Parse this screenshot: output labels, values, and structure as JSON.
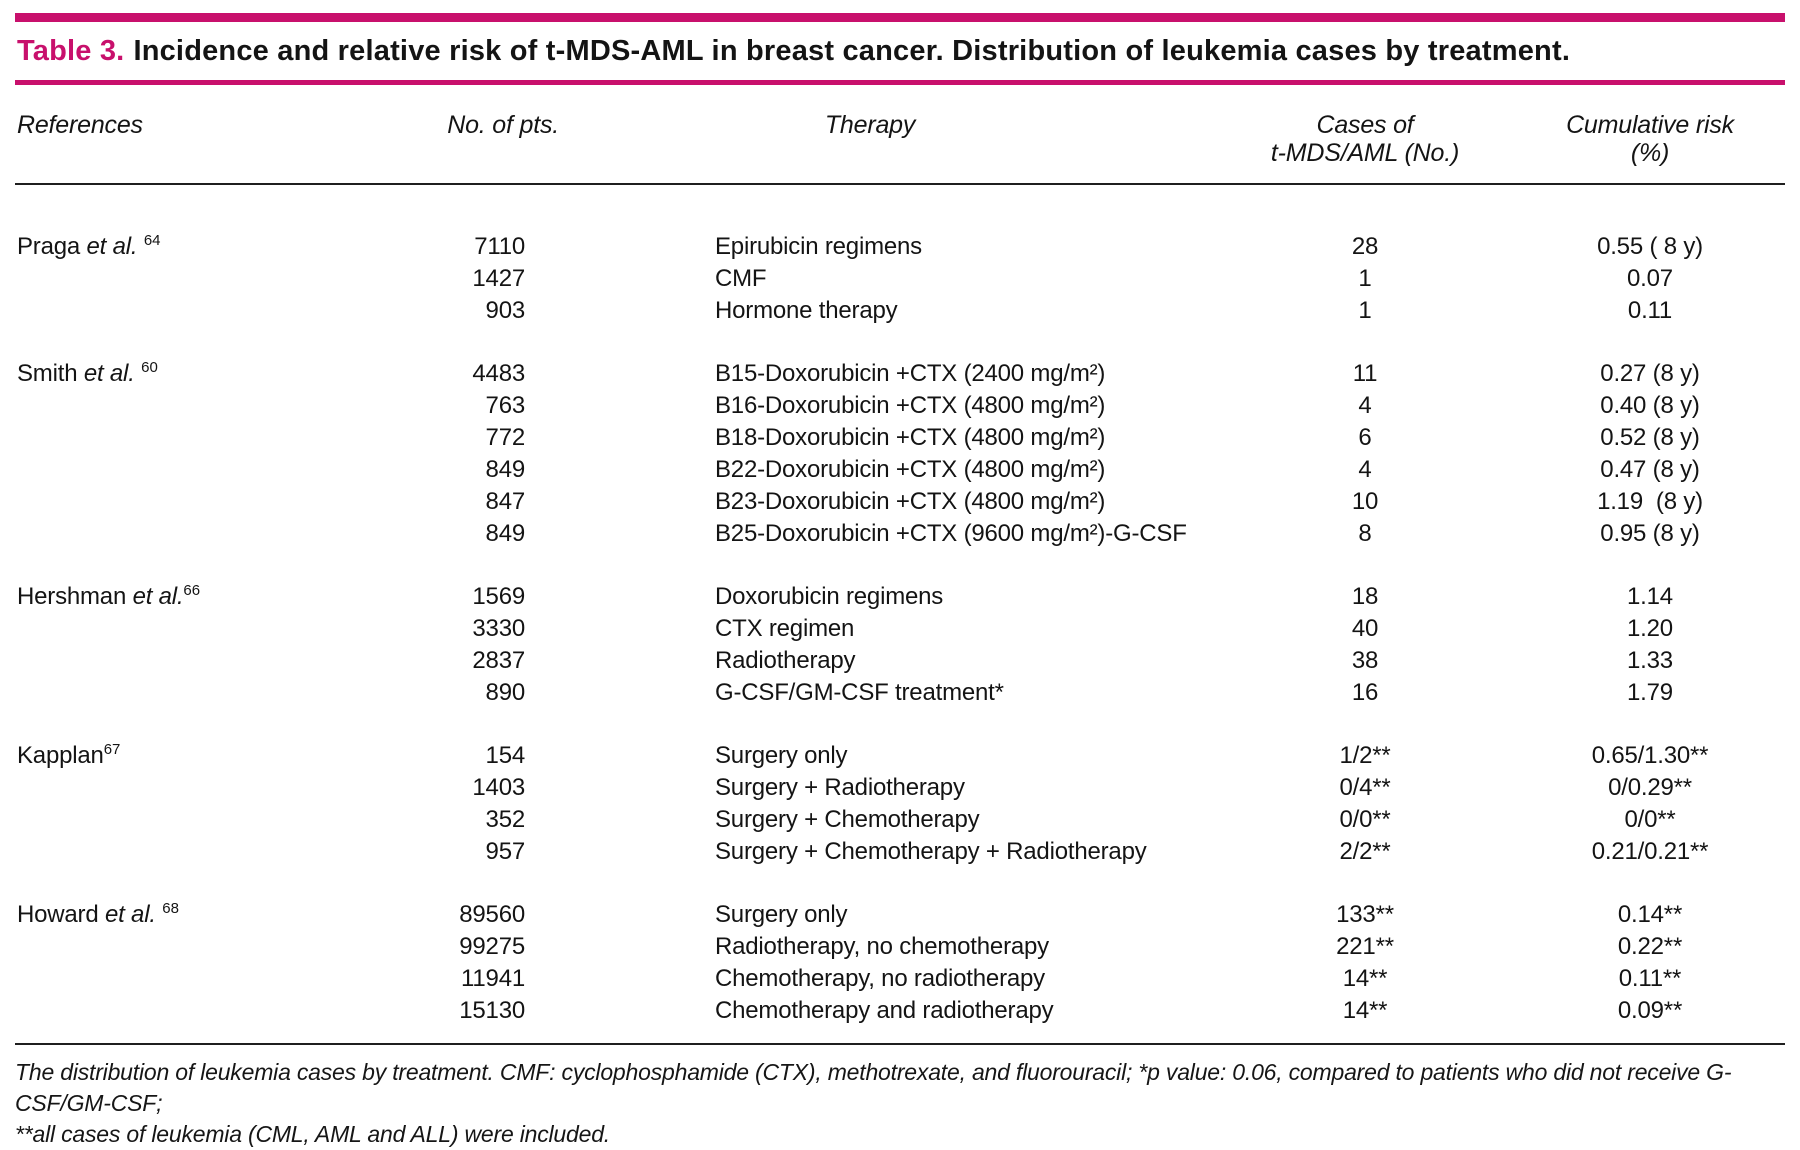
{
  "accent_color": "#C8106C",
  "title": {
    "label": "Table 3.",
    "text": "Incidence and relative risk of t-MDS-AML in breast cancer. Distribution of leukemia cases by treatment."
  },
  "header": {
    "references": "References",
    "pts": "No. of pts.",
    "therapy": "Therapy",
    "cases_line1": "Cases of",
    "cases_line2": "t-MDS/AML (No.)",
    "risk_line1": "Cumulative risk",
    "risk_line2": "(%)"
  },
  "groups": [
    {
      "ref": {
        "name": "Praga",
        "etal": "et al.",
        "sup_sep": " ",
        "sup": "64"
      },
      "rows": [
        {
          "pts": "7110",
          "therapy": "Epirubicin regimens",
          "cases": "28",
          "risk": "0.55 ( 8 y)"
        },
        {
          "pts": "1427",
          "therapy": "CMF",
          "cases": "1",
          "risk": "0.07"
        },
        {
          "pts": "903",
          "therapy": "Hormone therapy",
          "cases": "1",
          "risk": "0.11"
        }
      ]
    },
    {
      "ref": {
        "name": "Smith",
        "etal": "et al.",
        "sup_sep": " ",
        "sup": "60"
      },
      "rows": [
        {
          "pts": "4483",
          "therapy": "B15-Doxorubicin +CTX (2400 mg/m²)",
          "cases": "11",
          "risk": "0.27 (8 y)"
        },
        {
          "pts": "763",
          "therapy": "B16-Doxorubicin +CTX (4800 mg/m²)",
          "cases": "4",
          "risk": "0.40 (8 y)"
        },
        {
          "pts": "772",
          "therapy": "B18-Doxorubicin +CTX (4800 mg/m²)",
          "cases": "6",
          "risk": "0.52 (8 y)"
        },
        {
          "pts": "849",
          "therapy": "B22-Doxorubicin +CTX (4800 mg/m²)",
          "cases": "4",
          "risk": "0.47 (8 y)"
        },
        {
          "pts": "847",
          "therapy": "B23-Doxorubicin +CTX (4800 mg/m²)",
          "cases": "10",
          "risk": "1.19  (8 y)"
        },
        {
          "pts": "849",
          "therapy": "B25-Doxorubicin +CTX (9600 mg/m²)-G-CSF",
          "cases": "8",
          "risk": "0.95 (8 y)"
        }
      ]
    },
    {
      "ref": {
        "name": "Hershman",
        "etal": "et al.",
        "sup_sep": "",
        "sup": "66"
      },
      "rows": [
        {
          "pts": "1569",
          "therapy": "Doxorubicin regimens",
          "cases": "18",
          "risk": "1.14"
        },
        {
          "pts": "3330",
          "therapy": "CTX regimen",
          "cases": "40",
          "risk": "1.20"
        },
        {
          "pts": "2837",
          "therapy": "Radiotherapy",
          "cases": "38",
          "risk": "1.33"
        },
        {
          "pts": "890",
          "therapy": "G-CSF/GM-CSF treatment*",
          "cases": "16",
          "risk": "1.79"
        }
      ]
    },
    {
      "ref": {
        "name": "Kapplan",
        "etal": "",
        "sup_sep": "",
        "sup": "67"
      },
      "rows": [
        {
          "pts": "154",
          "therapy": "Surgery only",
          "cases": "1/2**",
          "risk": "0.65/1.30**"
        },
        {
          "pts": "1403",
          "therapy": "Surgery + Radiotherapy",
          "cases": "0/4**",
          "risk": "0/0.29**"
        },
        {
          "pts": "352",
          "therapy": "Surgery + Chemotherapy",
          "cases": "0/0**",
          "risk": "0/0**"
        },
        {
          "pts": "957",
          "therapy": "Surgery + Chemotherapy + Radiotherapy",
          "cases": "2/2**",
          "risk": "0.21/0.21**"
        }
      ]
    },
    {
      "ref": {
        "name": "Howard",
        "etal": "et al.",
        "sup_sep": " ",
        "sup": "68"
      },
      "rows": [
        {
          "pts": "89560",
          "therapy": "Surgery only",
          "cases": "133**",
          "risk": "0.14**"
        },
        {
          "pts": "99275",
          "therapy": "Radiotherapy, no chemotherapy",
          "cases": "221**",
          "risk": "0.22**"
        },
        {
          "pts": "11941",
          "therapy": "Chemotherapy, no radiotherapy",
          "cases": "14**",
          "risk": "0.11**"
        },
        {
          "pts": "15130",
          "therapy": "Chemotherapy and radiotherapy",
          "cases": "14**",
          "risk": "0.09**"
        }
      ]
    }
  ],
  "footnote": {
    "line1": "The distribution of leukemia cases by treatment. CMF: cyclophosphamide (CTX), methotrexate, and fluorouracil; *p value: 0.06, compared to patients who did not receive G-CSF/GM-CSF;",
    "line2": "**all cases of leukemia (CML, AML and ALL) were included."
  }
}
